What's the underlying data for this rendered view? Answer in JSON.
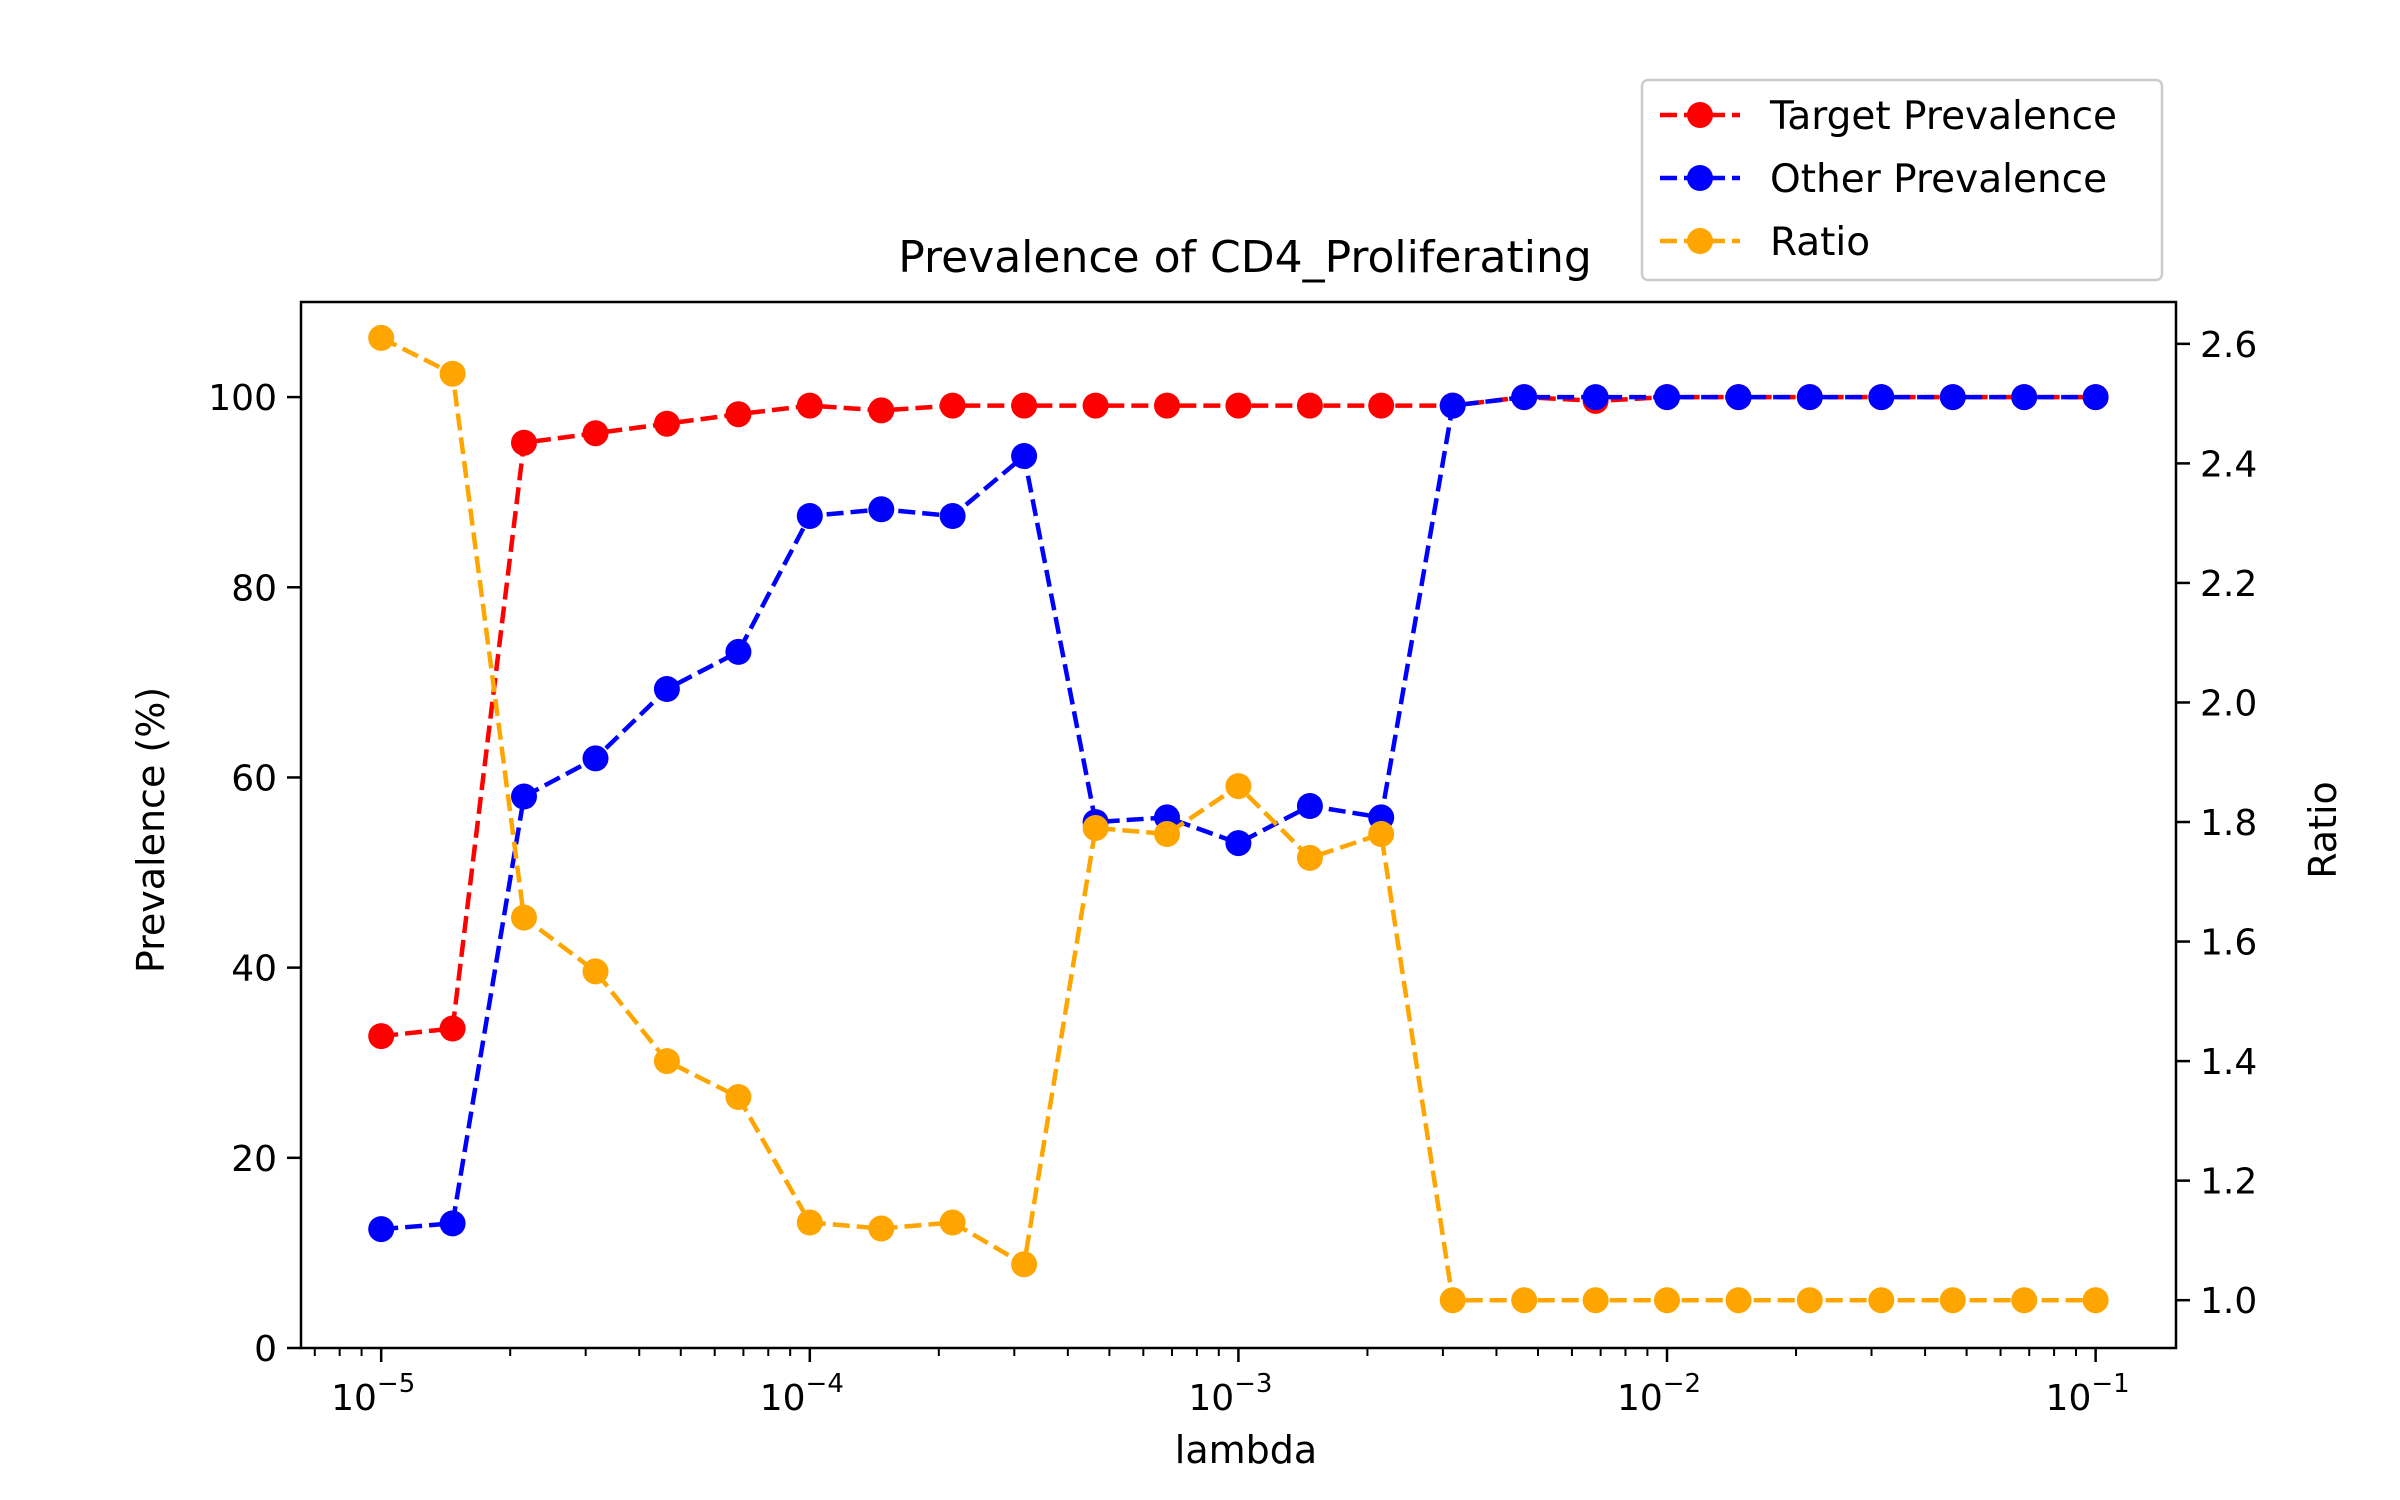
{
  "chart_data": {
    "type": "line",
    "title": "Prevalence of CD4_Proliferating",
    "xlabel": "lambda",
    "ylabel": "Prevalence (%)",
    "y2label": "Ratio",
    "xscale": "log",
    "xlim": [
      6.5e-06,
      0.154
    ],
    "ylim": [
      0,
      110
    ],
    "y2lim": [
      0.92,
      2.67
    ],
    "x_ticks": [
      {
        "value": 1e-05,
        "base": "10",
        "exp": "−5"
      },
      {
        "value": 0.0001,
        "base": "10",
        "exp": "−4"
      },
      {
        "value": 0.001,
        "base": "10",
        "exp": "−3"
      },
      {
        "value": 0.01,
        "base": "10",
        "exp": "−2"
      },
      {
        "value": 0.1,
        "base": "10",
        "exp": "−1"
      }
    ],
    "y_ticks": [
      "0",
      "20",
      "40",
      "60",
      "80",
      "100"
    ],
    "y2_ticks": [
      "1.0",
      "1.2",
      "1.4",
      "1.6",
      "1.8",
      "2.0",
      "2.2",
      "2.4",
      "2.6"
    ],
    "x": [
      1e-05,
      1.468e-05,
      2.154e-05,
      3.162e-05,
      4.642e-05,
      6.813e-05,
      0.0001,
      0.0001468,
      0.0002154,
      0.0003162,
      0.0004642,
      0.0006813,
      0.001,
      0.001468,
      0.002154,
      0.003162,
      0.004642,
      0.006813,
      0.01,
      0.01468,
      0.02154,
      0.03162,
      0.04642,
      0.06813,
      0.1
    ],
    "series": [
      {
        "name": "Target Prevalence",
        "axis": "left",
        "color": "#ff0000",
        "values": [
          32.8,
          33.6,
          95.2,
          96.2,
          97.2,
          98.2,
          99.1,
          98.6,
          99.1,
          99.1,
          99.1,
          99.1,
          99.1,
          99.1,
          99.1,
          99.1,
          100.0,
          99.6,
          100.0,
          100.0,
          100.0,
          100.0,
          100.0,
          100.0,
          100.0
        ]
      },
      {
        "name": "Other Prevalence",
        "axis": "left",
        "color": "#0000ff",
        "values": [
          12.5,
          13.1,
          58.0,
          62.0,
          69.3,
          73.2,
          87.5,
          88.2,
          87.5,
          93.8,
          55.3,
          55.8,
          53.1,
          57.0,
          55.8,
          99.1,
          100.0,
          100.0,
          100.0,
          100.0,
          100.0,
          100.0,
          100.0,
          100.0,
          100.0
        ]
      },
      {
        "name": "Ratio",
        "axis": "right",
        "color": "#ffa500",
        "values": [
          2.61,
          2.55,
          1.64,
          1.55,
          1.4,
          1.34,
          1.13,
          1.12,
          1.13,
          1.06,
          1.79,
          1.78,
          1.86,
          1.74,
          1.78,
          1.0,
          1.0,
          1.0,
          1.0,
          1.0,
          1.0,
          1.0,
          1.0,
          1.0,
          1.0
        ]
      }
    ],
    "grid": false,
    "legend_position": "top-right"
  }
}
